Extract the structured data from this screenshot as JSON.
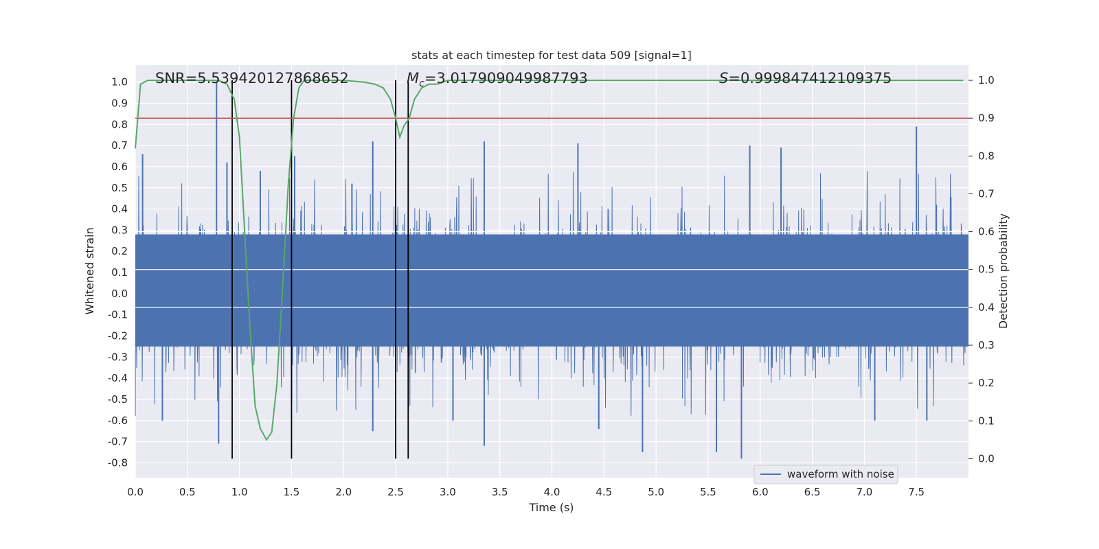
{
  "chart_data": {
    "type": "line",
    "title": "stats at each timestep for test data 509 [signal=1]",
    "xlabel": "Time (s)",
    "ylabel": "Whitened strain",
    "y2label": "Detection probability",
    "xlim": [
      0.0,
      8.0
    ],
    "ylim": [
      -0.87,
      1.08
    ],
    "y2lim": [
      -0.05,
      1.04
    ],
    "xticks": [
      "0.0",
      "0.5",
      "1.0",
      "1.5",
      "2.0",
      "2.5",
      "3.0",
      "3.5",
      "4.0",
      "4.5",
      "5.0",
      "5.5",
      "6.0",
      "6.5",
      "7.0",
      "7.5"
    ],
    "yticks": [
      "1.0",
      "0.9",
      "0.8",
      "0.7",
      "0.6",
      "0.5",
      "0.4",
      "0.3",
      "0.2",
      "0.1",
      "0.0",
      "-0.1",
      "-0.2",
      "-0.3",
      "-0.4",
      "-0.5",
      "-0.6",
      "-0.7",
      "-0.8"
    ],
    "y2ticks": [
      "1.0",
      "0.9",
      "0.8",
      "0.7",
      "0.6",
      "0.5",
      "0.4",
      "0.3",
      "0.2",
      "0.1",
      "0.0"
    ],
    "grid": true,
    "legend_position": "lower-right",
    "annotations": {
      "snr": "SNR=5.539420127868652",
      "mc_symbol": "M",
      "mc_sub": "c",
      "mc_value": "=3.017909049987793",
      "s_symbol": "S",
      "s_value": "=0.999847412109375"
    },
    "series": [
      {
        "name": "waveform with noise",
        "axis": "left",
        "color": "#4c72b0",
        "noise_band": [
          -0.25,
          0.28
        ],
        "spike_peaks": [
          {
            "x": 0.07,
            "y": 0.66
          },
          {
            "x": 0.78,
            "y": 1.0
          },
          {
            "x": 0.8,
            "y": -0.71
          },
          {
            "x": 0.88,
            "y": 0.62
          },
          {
            "x": 1.5,
            "y": -0.52
          },
          {
            "x": 1.53,
            "y": 0.65
          },
          {
            "x": 1.2,
            "y": 0.58
          },
          {
            "x": 2.28,
            "y": 0.72
          },
          {
            "x": 2.28,
            "y": -0.65
          },
          {
            "x": 3.35,
            "y": 0.72
          },
          {
            "x": 3.35,
            "y": -0.72
          },
          {
            "x": 4.25,
            "y": 0.71
          },
          {
            "x": 4.45,
            "y": -0.64
          },
          {
            "x": 4.87,
            "y": -0.75
          },
          {
            "x": 5.58,
            "y": -0.75
          },
          {
            "x": 5.82,
            "y": -0.78
          },
          {
            "x": 5.9,
            "y": 0.7
          },
          {
            "x": 7.5,
            "y": 0.79
          },
          {
            "x": 7.1,
            "y": -0.6
          },
          {
            "x": 7.6,
            "y": -0.6
          },
          {
            "x": 0.26,
            "y": -0.6
          },
          {
            "x": 3.05,
            "y": -0.6
          },
          {
            "x": 6.2,
            "y": 0.69
          },
          {
            "x": 2.08,
            "y": 0.52
          }
        ]
      },
      {
        "name": "",
        "axis": "right",
        "color": "#55a868",
        "x": [
          0.0,
          0.05,
          0.12,
          0.2,
          0.3,
          0.5,
          0.7,
          0.8,
          0.88,
          0.95,
          1.0,
          1.05,
          1.1,
          1.15,
          1.2,
          1.26,
          1.31,
          1.36,
          1.41,
          1.47,
          1.52,
          1.57,
          1.62,
          1.68,
          1.8,
          2.0,
          2.2,
          2.3,
          2.38,
          2.45,
          2.5,
          2.54,
          2.58,
          2.63,
          2.68,
          2.75,
          2.82,
          2.9,
          3.0,
          3.5,
          4.0,
          4.5,
          5.0,
          5.5,
          6.0,
          6.5,
          7.0,
          7.5,
          7.95
        ],
        "y": [
          0.82,
          0.99,
          1.0,
          1.0,
          1.0,
          1.0,
          1.0,
          1.0,
          0.99,
          0.95,
          0.85,
          0.6,
          0.35,
          0.14,
          0.08,
          0.05,
          0.07,
          0.2,
          0.43,
          0.73,
          0.9,
          0.98,
          1.0,
          1.0,
          1.0,
          1.0,
          0.995,
          0.99,
          0.98,
          0.95,
          0.9,
          0.85,
          0.88,
          0.9,
          0.95,
          0.98,
          0.99,
          0.99,
          1.0,
          1.0,
          1.0,
          1.0,
          1.0,
          1.0,
          1.0,
          1.0,
          1.0,
          1.0,
          1.0
        ]
      }
    ],
    "threshold": {
      "axis": "right",
      "value": 0.9,
      "color": "#c44e52"
    },
    "vlines": [
      0.93,
      1.5,
      2.5,
      2.62
    ],
    "vline_span": [
      -0.05,
      1.0
    ]
  }
}
